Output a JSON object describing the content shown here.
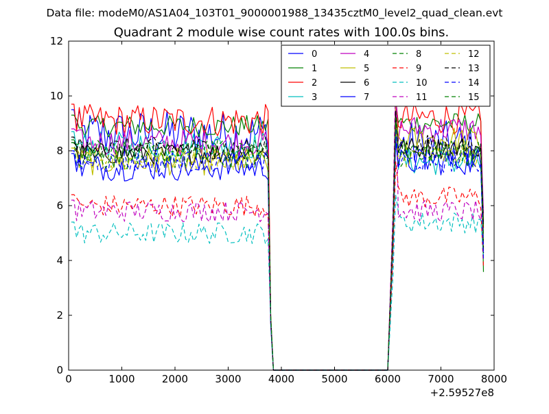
{
  "figure": {
    "suptitle": "Data file: modeM0/AS1A04_103T01_9000001988_13435cztM0_level2_quad_clean.evt",
    "title": "Quadrant 2 module wise count rates with 100.0s bins.",
    "x_offset_label": "+2.59527e8"
  },
  "chart_data": {
    "type": "line",
    "title": "Quadrant 2 module wise count rates with 100.0s bins.",
    "xlabel": "",
    "ylabel": "",
    "x_offset": 259527000,
    "xlim": [
      0,
      8000
    ],
    "ylim": [
      0,
      12
    ],
    "xticks": [
      0,
      1000,
      2000,
      3000,
      4000,
      5000,
      6000,
      7000,
      8000
    ],
    "yticks": [
      0,
      2,
      4,
      6,
      8,
      10,
      12
    ],
    "grid": false,
    "legend_placement": "top-right",
    "segments": [
      {
        "x_start": 50,
        "x_end": 3750,
        "step": 50
      },
      {
        "x_start": 3850,
        "x_end": 5950,
        "step": 100
      },
      {
        "x_start": 6000,
        "x_end": 7800,
        "step": 50
      }
    ],
    "series": [
      {
        "name": "0",
        "color": "#0000ff",
        "dash": "solid",
        "level": 8.6,
        "spread": 0.9,
        "post_level": 8.2,
        "spike": 9.0
      },
      {
        "name": "1",
        "color": "#008000",
        "dash": "solid",
        "level": 8.9,
        "spread": 0.4,
        "post_level": 9.0,
        "spike": 9.8
      },
      {
        "name": "2",
        "color": "#ff0000",
        "dash": "solid",
        "level": 9.1,
        "spread": 0.6,
        "post_level": 9.2,
        "spike": 10.0
      },
      {
        "name": "3",
        "color": "#00bfbf",
        "dash": "solid",
        "level": 8.2,
        "spread": 0.5,
        "post_level": 7.6,
        "spike": 8.6
      },
      {
        "name": "4",
        "color": "#bf00bf",
        "dash": "solid",
        "level": 8.3,
        "spread": 0.5,
        "post_level": 8.8,
        "spike": 10.2
      },
      {
        "name": "5",
        "color": "#bfbf00",
        "dash": "solid",
        "level": 7.6,
        "spread": 0.5,
        "post_level": 8.4,
        "spike": 9.6
      },
      {
        "name": "6",
        "color": "#000000",
        "dash": "solid",
        "level": 7.9,
        "spread": 0.4,
        "post_level": 8.1,
        "spike": 9.4
      },
      {
        "name": "7",
        "color": "#0000ff",
        "dash": "solid",
        "level": 7.4,
        "spread": 0.5,
        "post_level": 7.6,
        "spike": 8.4
      },
      {
        "name": "8",
        "color": "#008000",
        "dash": "dashed",
        "level": 7.8,
        "spread": 0.5,
        "post_level": 7.9,
        "spike": 9.2
      },
      {
        "name": "9",
        "color": "#ff0000",
        "dash": "dashed",
        "level": 6.0,
        "spread": 0.4,
        "post_level": 6.3,
        "spike": 7.6
      },
      {
        "name": "10",
        "color": "#00bfbf",
        "dash": "dashed",
        "level": 5.0,
        "spread": 0.4,
        "post_level": 5.4,
        "spike": 6.4
      },
      {
        "name": "11",
        "color": "#bf00bf",
        "dash": "dashed",
        "level": 5.8,
        "spread": 0.4,
        "post_level": 5.8,
        "spike": 10.8
      },
      {
        "name": "12",
        "color": "#bfbf00",
        "dash": "dashed",
        "level": 7.7,
        "spread": 0.4,
        "post_level": 7.8,
        "spike": 9.0
      },
      {
        "name": "13",
        "color": "#000000",
        "dash": "dashed",
        "level": 8.1,
        "spread": 0.4,
        "post_level": 8.2,
        "spike": 9.5
      },
      {
        "name": "14",
        "color": "#0000ff",
        "dash": "dashed",
        "level": 7.6,
        "spread": 0.4,
        "post_level": 7.6,
        "spike": 8.8
      },
      {
        "name": "15",
        "color": "#008000",
        "dash": "dashed",
        "level": 8.0,
        "spread": 0.4,
        "post_level": 8.0,
        "spike": 9.2
      }
    ]
  }
}
